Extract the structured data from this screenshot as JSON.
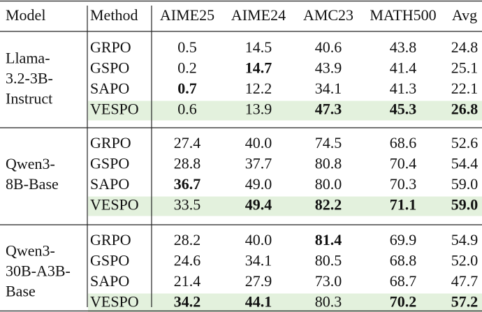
{
  "table": {
    "header": [
      "Model",
      "Method",
      "AIME25",
      "AIME24",
      "AMC23",
      "MATH500",
      "Avg"
    ],
    "groups": [
      {
        "model": [
          "Llama-",
          "3.2-3B-",
          "Instruct"
        ],
        "rows": [
          {
            "cells": [
              {
                "text": "GRPO"
              },
              {
                "text": "0.5"
              },
              {
                "text": "14.5"
              },
              {
                "text": "40.6"
              },
              {
                "text": "43.8"
              },
              {
                "text": "24.8"
              }
            ]
          },
          {
            "cells": [
              {
                "text": "GSPO"
              },
              {
                "text": "0.2"
              },
              {
                "text": "14.7",
                "bold": true
              },
              {
                "text": "43.9"
              },
              {
                "text": "41.4"
              },
              {
                "text": "25.1"
              }
            ]
          },
          {
            "cells": [
              {
                "text": "SAPO"
              },
              {
                "text": "0.7",
                "bold": true
              },
              {
                "text": "12.2"
              },
              {
                "text": "34.1"
              },
              {
                "text": "41.3"
              },
              {
                "text": "22.1"
              }
            ]
          },
          {
            "highlight": true,
            "cells": [
              {
                "text": "VESPO"
              },
              {
                "text": "0.6"
              },
              {
                "text": "13.9"
              },
              {
                "text": "47.3",
                "bold": true
              },
              {
                "text": "45.3",
                "bold": true
              },
              {
                "text": "26.8",
                "bold": true
              }
            ]
          }
        ]
      },
      {
        "model": [
          "Qwen3-",
          "8B-Base"
        ],
        "rows": [
          {
            "cells": [
              {
                "text": "GRPO"
              },
              {
                "text": "27.4"
              },
              {
                "text": "40.0"
              },
              {
                "text": "74.5"
              },
              {
                "text": "68.6"
              },
              {
                "text": "52.6"
              }
            ]
          },
          {
            "cells": [
              {
                "text": "GSPO"
              },
              {
                "text": "28.8"
              },
              {
                "text": "37.7"
              },
              {
                "text": "80.8"
              },
              {
                "text": "70.4"
              },
              {
                "text": "54.4"
              }
            ]
          },
          {
            "cells": [
              {
                "text": "SAPO"
              },
              {
                "text": "36.7",
                "bold": true
              },
              {
                "text": "49.0"
              },
              {
                "text": "80.0"
              },
              {
                "text": "70.3"
              },
              {
                "text": "59.0"
              }
            ]
          },
          {
            "highlight": true,
            "cells": [
              {
                "text": "VESPO"
              },
              {
                "text": "33.5"
              },
              {
                "text": "49.4",
                "bold": true
              },
              {
                "text": "82.2",
                "bold": true
              },
              {
                "text": "71.1",
                "bold": true
              },
              {
                "text": "59.0",
                "bold": true
              }
            ]
          }
        ]
      },
      {
        "model": [
          "Qwen3-",
          "30B-A3B-",
          "Base"
        ],
        "rows": [
          {
            "cells": [
              {
                "text": "GRPO"
              },
              {
                "text": "28.2"
              },
              {
                "text": "40.0"
              },
              {
                "text": "81.4",
                "bold": true
              },
              {
                "text": "69.9"
              },
              {
                "text": "54.9"
              }
            ]
          },
          {
            "cells": [
              {
                "text": "GSPO"
              },
              {
                "text": "24.6"
              },
              {
                "text": "34.1"
              },
              {
                "text": "80.5"
              },
              {
                "text": "68.8"
              },
              {
                "text": "52.0"
              }
            ]
          },
          {
            "cells": [
              {
                "text": "SAPO"
              },
              {
                "text": "21.4"
              },
              {
                "text": "27.9"
              },
              {
                "text": "73.0"
              },
              {
                "text": "68.7"
              },
              {
                "text": "47.7"
              }
            ]
          },
          {
            "highlight": true,
            "cells": [
              {
                "text": "VESPO"
              },
              {
                "text": "34.2",
                "bold": true
              },
              {
                "text": "44.1",
                "bold": true
              },
              {
                "text": "80.3"
              },
              {
                "text": "70.2",
                "bold": true
              },
              {
                "text": "57.2",
                "bold": true
              }
            ]
          }
        ]
      }
    ]
  }
}
